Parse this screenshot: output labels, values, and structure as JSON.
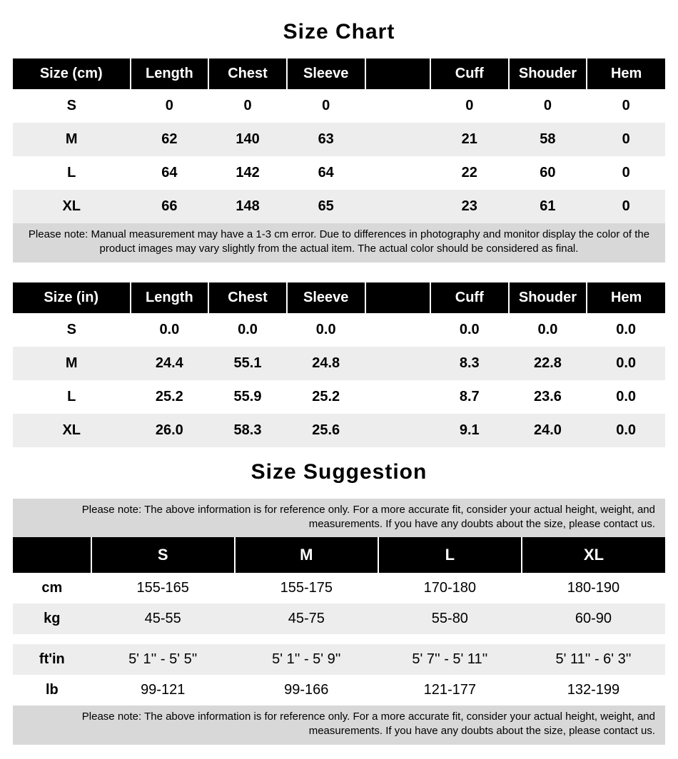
{
  "titles": {
    "sizeChart": "Size Chart",
    "sizeSuggestion": "Size Suggestion"
  },
  "sizeTables": {
    "columns": [
      "Length",
      "Chest",
      "Sleeve",
      "",
      "Cuff",
      "Shouder",
      "Hem"
    ],
    "cm": {
      "header": "Size (cm)",
      "rows": [
        {
          "size": "S",
          "v": [
            "0",
            "0",
            "0",
            "",
            "0",
            "0",
            "0"
          ]
        },
        {
          "size": "M",
          "v": [
            "62",
            "140",
            "63",
            "",
            "21",
            "58",
            "0"
          ]
        },
        {
          "size": "L",
          "v": [
            "64",
            "142",
            "64",
            "",
            "22",
            "60",
            "0"
          ]
        },
        {
          "size": "XL",
          "v": [
            "66",
            "148",
            "65",
            "",
            "23",
            "61",
            "0"
          ]
        }
      ],
      "note": "Please note: Manual measurement may have a 1-3 cm error. Due to differences in photography and monitor display the color of the product images may vary slightly from the actual item. The actual color should be considered as final."
    },
    "in": {
      "header": "Size (in)",
      "rows": [
        {
          "size": "S",
          "v": [
            "0.0",
            "0.0",
            "0.0",
            "",
            "0.0",
            "0.0",
            "0.0"
          ]
        },
        {
          "size": "M",
          "v": [
            "24.4",
            "55.1",
            "24.8",
            "",
            "8.3",
            "22.8",
            "0.0"
          ]
        },
        {
          "size": "L",
          "v": [
            "25.2",
            "55.9",
            "25.2",
            "",
            "8.7",
            "23.6",
            "0.0"
          ]
        },
        {
          "size": "XL",
          "v": [
            "26.0",
            "58.3",
            "25.6",
            "",
            "9.1",
            "24.0",
            "0.0"
          ]
        }
      ]
    }
  },
  "suggestion": {
    "noteTop": "Please note: The above information is for reference only. For a more accurate fit, consider your actual height, weight, and measurements. If you have any doubts about the size, please contact us.",
    "noteBottom": "Please note: The above information is for reference only. For a more accurate fit, consider your actual height, weight, and measurements. If you have any doubts about the size, please contact us.",
    "sizes": [
      "S",
      "M",
      "L",
      "XL"
    ],
    "rows": [
      {
        "label": "cm",
        "v": [
          "155-165",
          "155-175",
          "170-180",
          "180-190"
        ]
      },
      {
        "label": "kg",
        "v": [
          "45-55",
          "45-75",
          "55-80",
          "60-90"
        ]
      }
    ],
    "rows2": [
      {
        "label": "ft'in",
        "v": [
          "5' 1'' - 5' 5''",
          "5' 1'' - 5' 9''",
          "5' 7'' - 5' 11''",
          "5' 11'' - 6' 3''"
        ]
      },
      {
        "label": "lb",
        "v": [
          "99-121",
          "99-166",
          "121-177",
          "132-199"
        ]
      }
    ]
  },
  "style": {
    "headerBg": "#000000",
    "headerFg": "#ffffff",
    "rowOdd": "#ffffff",
    "rowEven": "#ededed",
    "noteBg": "#d8d8d8",
    "titleFontSize": 30,
    "headerFontSize": 20,
    "cellFontSize": 20,
    "noteFontSize": 15
  }
}
